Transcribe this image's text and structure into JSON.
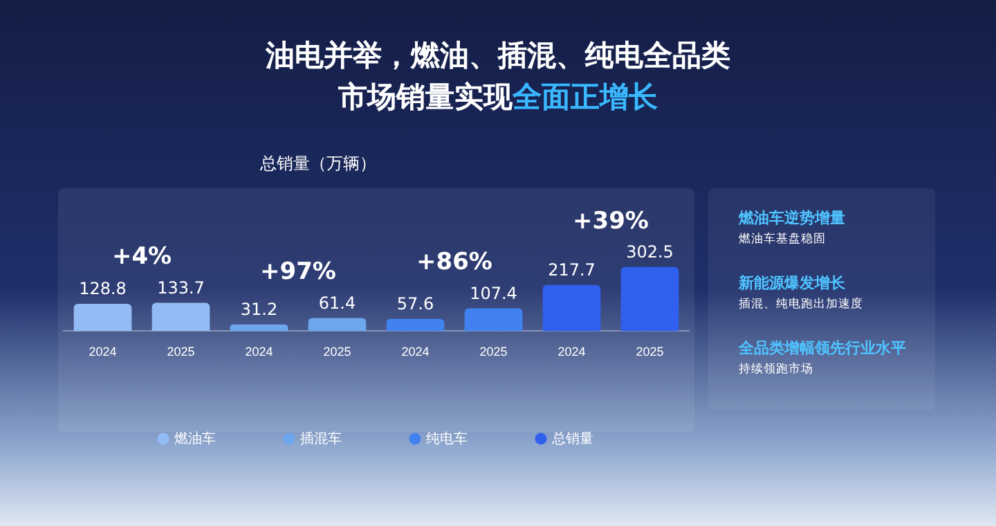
{
  "chart_data": {
    "type": "bar",
    "title": "油电并举，燃油、插混、纯电全品类",
    "subtitle": "市场销量实现全面正增长",
    "categories": [
      "2024",
      "2025",
      "2024",
      "2025",
      "2024",
      "2025",
      "2024",
      "2025"
    ],
    "series": [
      {
        "name": "燃油车",
        "color": "#93bbf5",
        "values": [
          128.8,
          133.7,
          null,
          null,
          null,
          null,
          null,
          null
        ]
      },
      {
        "name": "插混车",
        "color": "#6ea6ee",
        "values": [
          null,
          null,
          31.2,
          61.4,
          null,
          null,
          null,
          null
        ]
      },
      {
        "name": "纯电车",
        "color": "#4282f0",
        "values": [
          null,
          null,
          null,
          null,
          57.6,
          107.4,
          null,
          null
        ]
      },
      {
        "name": "总销量",
        "color": "#3060ee",
        "values": [
          null,
          null,
          null,
          null,
          null,
          null,
          217.7,
          302.5
        ]
      }
    ],
    "stacked": true,
    "data_labels": true,
    "legend": "bottom",
    "tick_labels": "x",
    "grid": false,
    "annotations": [
      "+4%",
      "+97%",
      "+86%",
      "+39%",
      "燃油车逆势增量",
      "燃油车基盘稳固",
      "新能源爆发增长",
      "插混、纯电跑出加速度",
      "全品类增幅领先行业水平",
      "持续领跑市场",
      "总销量（万辆）"
    ]
  }
}
